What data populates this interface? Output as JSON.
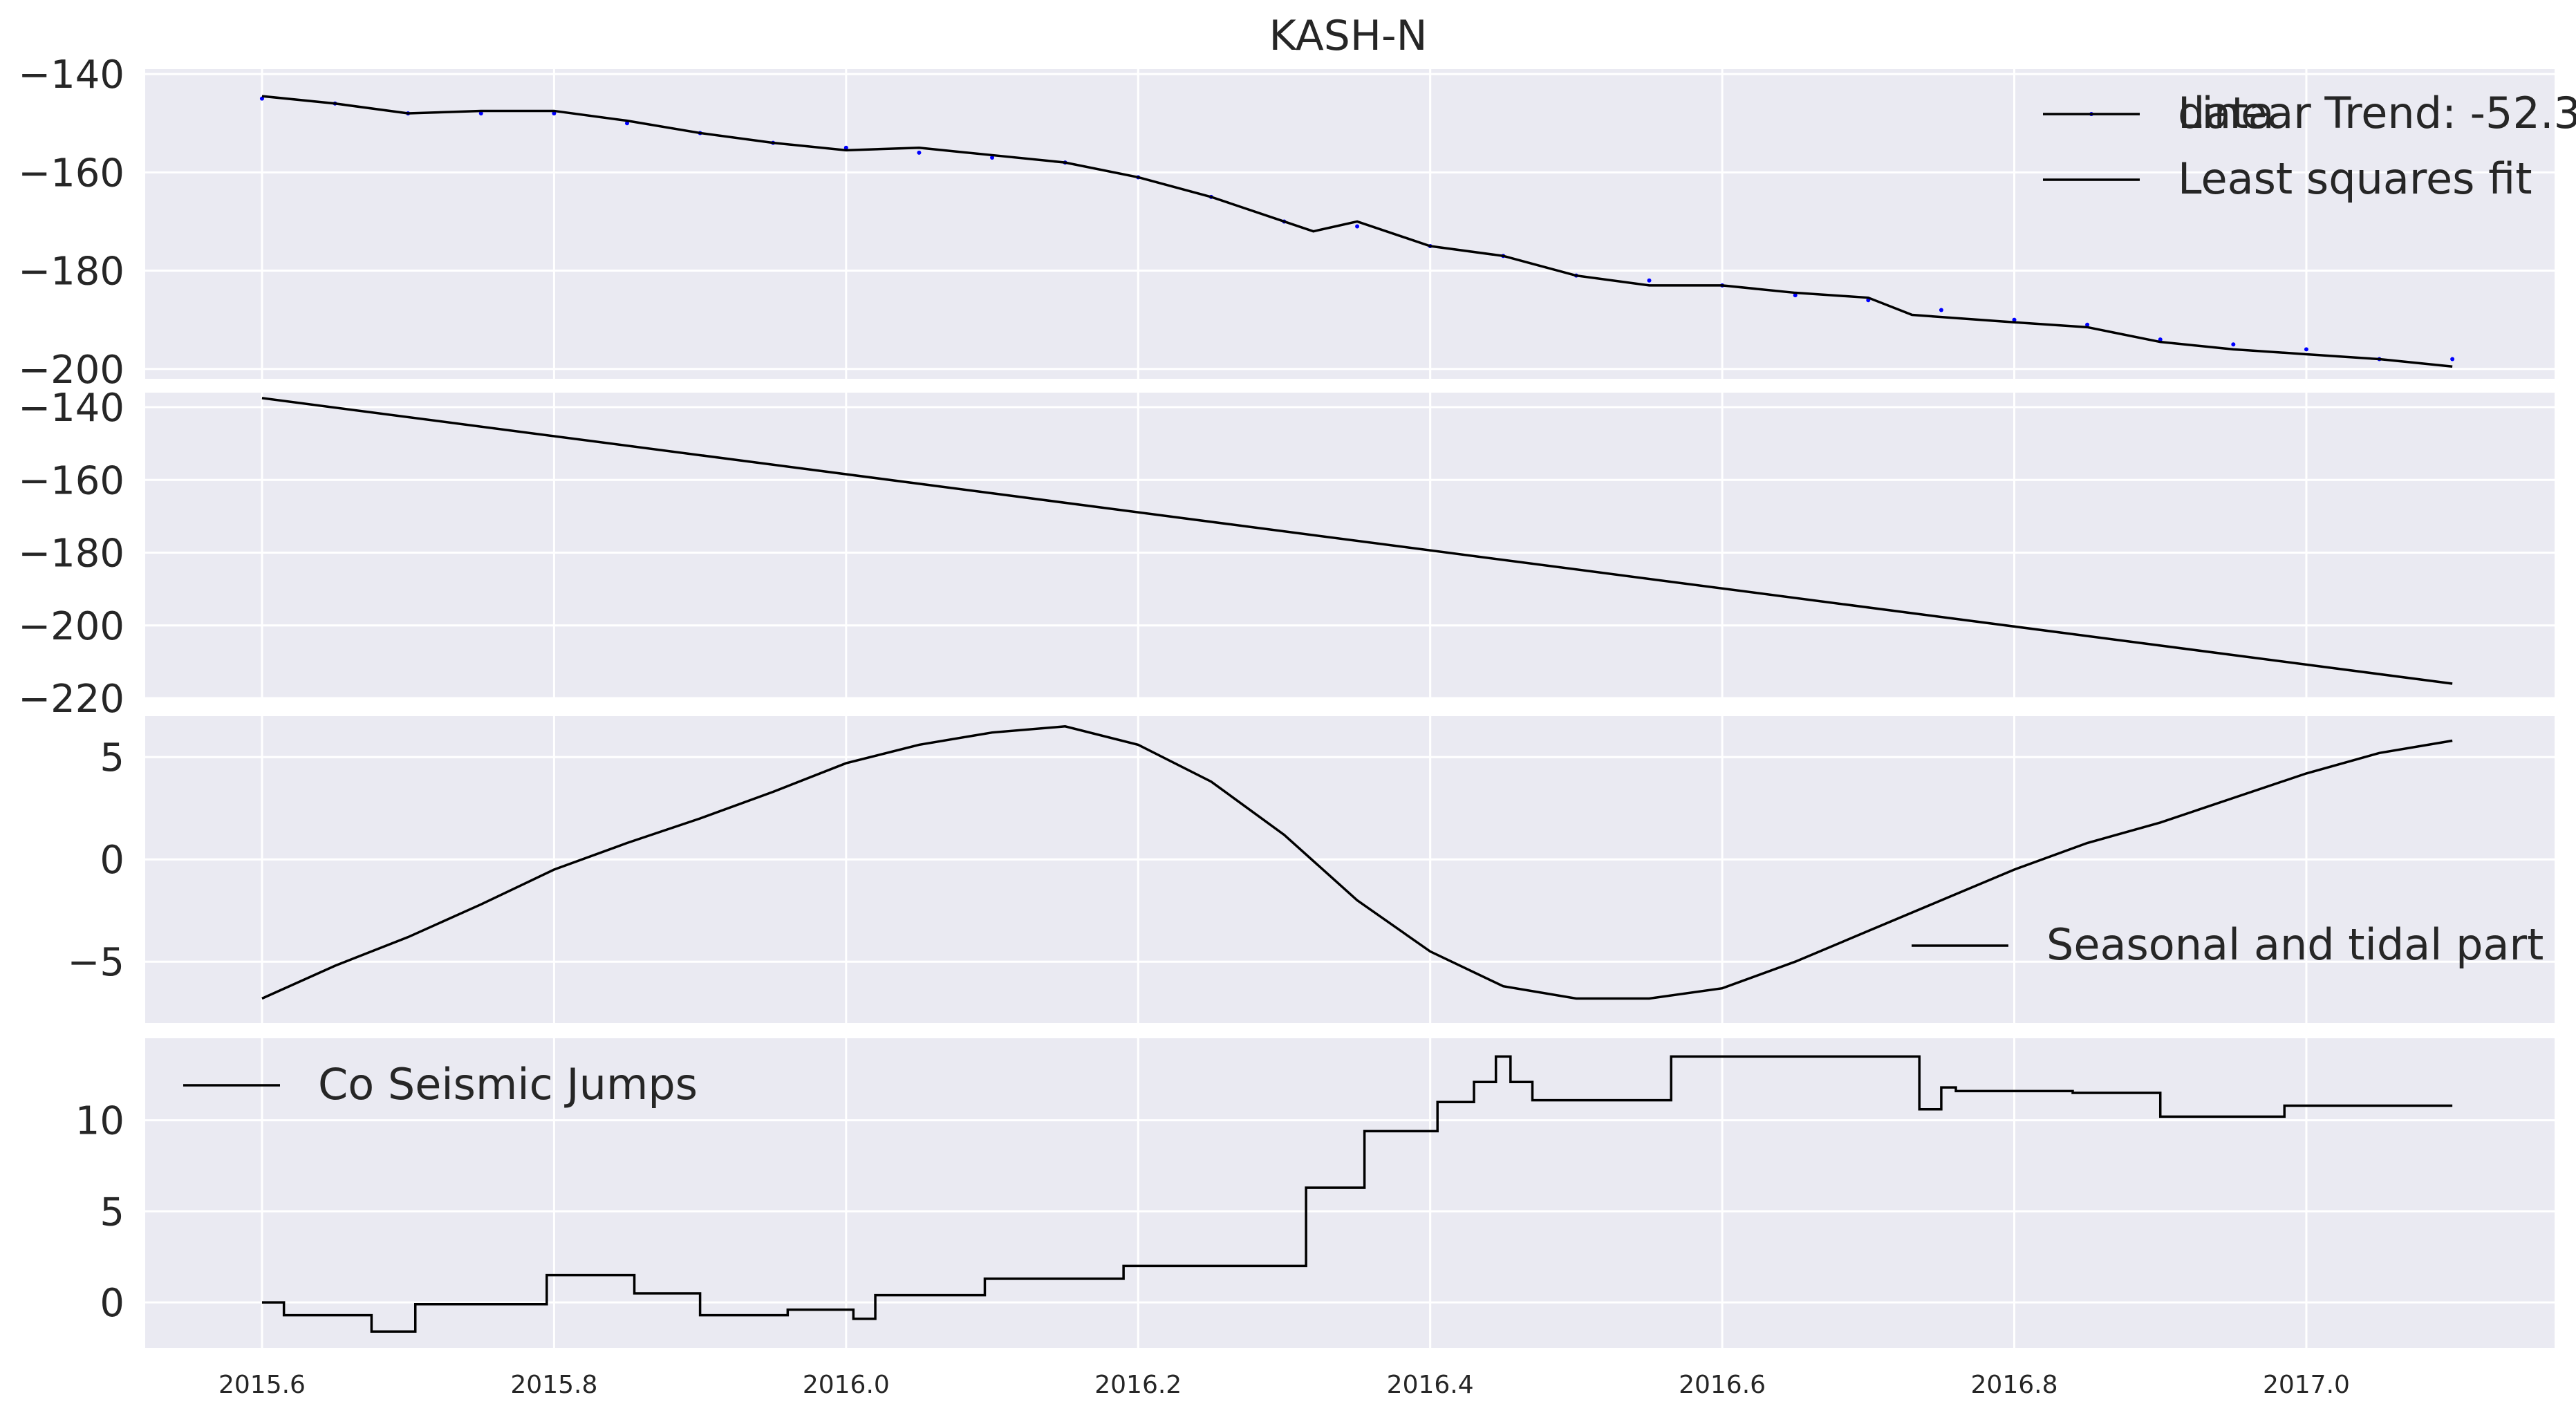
{
  "figure": {
    "title": "KASH-N"
  },
  "chart_data": [
    {
      "type": "scatter",
      "panel": 1,
      "title": "KASH-N",
      "grid": true,
      "legend_loc": "upper-right",
      "xlim": [
        2015.52,
        2017.17
      ],
      "ylim": [
        -202,
        -139
      ],
      "yticks": [
        -140,
        -160,
        -180,
        -200
      ],
      "series": [
        {
          "name": "data",
          "kind": "points",
          "color": "#0000ff",
          "x": [
            2015.6,
            2015.65,
            2015.7,
            2015.75,
            2015.8,
            2015.85,
            2015.9,
            2015.95,
            2016.0,
            2016.05,
            2016.1,
            2016.15,
            2016.2,
            2016.25,
            2016.3,
            2016.35,
            2016.4,
            2016.45,
            2016.5,
            2016.55,
            2016.6,
            2016.65,
            2016.7,
            2016.75,
            2016.8,
            2016.85,
            2016.9,
            2016.95,
            2017.0,
            2017.05,
            2017.1
          ],
          "y": [
            -145,
            -146,
            -148,
            -148,
            -148,
            -150,
            -152,
            -154,
            -155,
            -156,
            -157,
            -158,
            -161,
            -165,
            -170,
            -171,
            -175,
            -177,
            -181,
            -182,
            -183,
            -185,
            -186,
            -188,
            -190,
            -191,
            -194,
            -195,
            -196,
            -198,
            -198
          ]
        },
        {
          "name": "Least squares fit",
          "kind": "line",
          "color": "#000000",
          "x": [
            2015.6,
            2015.65,
            2015.7,
            2015.75,
            2015.8,
            2015.85,
            2015.9,
            2015.95,
            2016.0,
            2016.05,
            2016.1,
            2016.15,
            2016.2,
            2016.25,
            2016.3,
            2016.32,
            2016.35,
            2016.4,
            2016.45,
            2016.5,
            2016.55,
            2016.6,
            2016.65,
            2016.7,
            2016.73,
            2016.8,
            2016.85,
            2016.9,
            2016.95,
            2017.0,
            2017.05,
            2017.1
          ],
          "y": [
            -144.5,
            -146,
            -148,
            -147.5,
            -147.5,
            -149.5,
            -152,
            -154,
            -155.5,
            -155,
            -156.5,
            -158,
            -161,
            -165,
            -170,
            -172,
            -170,
            -175,
            -177,
            -181,
            -183,
            -183,
            -184.5,
            -185.5,
            -189,
            -190.5,
            -191.5,
            -194.5,
            -196,
            -197,
            -198,
            -199.5
          ]
        }
      ]
    },
    {
      "type": "line",
      "panel": 2,
      "grid": true,
      "legend_loc": "upper-right",
      "xlim": [
        2015.52,
        2017.17
      ],
      "ylim": [
        -220,
        -136
      ],
      "yticks": [
        -140,
        -160,
        -180,
        -200,
        -220
      ],
      "series": [
        {
          "name": "Linear Trend: -52.3",
          "color": "#000000",
          "x": [
            2015.6,
            2017.1
          ],
          "y": [
            -137.5,
            -216
          ]
        }
      ]
    },
    {
      "type": "line",
      "panel": 3,
      "grid": true,
      "legend_loc": "lower-right",
      "xlim": [
        2015.52,
        2017.17
      ],
      "ylim": [
        -8,
        7
      ],
      "yticks": [
        5,
        0,
        -5
      ],
      "series": [
        {
          "name": "Seasonal and tidal part",
          "color": "#000000",
          "x": [
            2015.6,
            2015.65,
            2015.7,
            2015.75,
            2015.8,
            2015.85,
            2015.9,
            2015.95,
            2016.0,
            2016.05,
            2016.1,
            2016.15,
            2016.2,
            2016.25,
            2016.3,
            2016.35,
            2016.4,
            2016.45,
            2016.5,
            2016.55,
            2016.6,
            2016.65,
            2016.7,
            2016.75,
            2016.8,
            2016.85,
            2016.9,
            2016.95,
            2017.0,
            2017.05,
            2017.1
          ],
          "y": [
            -6.8,
            -5.2,
            -3.8,
            -2.2,
            -0.5,
            0.8,
            2.0,
            3.3,
            4.7,
            5.6,
            6.2,
            6.5,
            5.6,
            3.8,
            1.2,
            -2.0,
            -4.5,
            -6.2,
            -6.8,
            -6.8,
            -6.3,
            -5.0,
            -3.5,
            -2.0,
            -0.5,
            0.8,
            1.8,
            3.0,
            4.2,
            5.2,
            5.8
          ]
        }
      ]
    },
    {
      "type": "line",
      "panel": 4,
      "grid": true,
      "legend_loc": "upper-left",
      "xlim": [
        2015.52,
        2017.17
      ],
      "ylim": [
        -2.5,
        14.5
      ],
      "yticks": [
        10,
        5,
        0
      ],
      "xticks": [
        "2015.6",
        "2015.8",
        "2016.0",
        "2016.2",
        "2016.4",
        "2016.6",
        "2016.8",
        "2017.0"
      ],
      "series": [
        {
          "name": "Co Seismic Jumps",
          "color": "#000000",
          "step": true,
          "x": [
            2015.6,
            2015.615,
            2015.675,
            2015.705,
            2015.795,
            2015.83,
            2015.855,
            2015.9,
            2015.96,
            2016.005,
            2016.02,
            2016.065,
            2016.095,
            2016.19,
            2016.315,
            2016.355,
            2016.405,
            2016.43,
            2016.445,
            2016.455,
            2016.47,
            2016.565,
            2016.735,
            2016.75,
            2016.76,
            2016.84,
            2016.9,
            2016.985,
            2017.1
          ],
          "y": [
            0,
            -0.7,
            -1.6,
            -0.1,
            1.5,
            1.5,
            0.5,
            -0.7,
            -0.4,
            -0.9,
            0.4,
            0.4,
            1.3,
            2.0,
            6.3,
            9.4,
            11,
            12.1,
            13.5,
            12.1,
            11.1,
            13.5,
            10.6,
            11.8,
            11.6,
            11.5,
            10.2,
            10.8,
            10.8
          ]
        }
      ]
    }
  ]
}
